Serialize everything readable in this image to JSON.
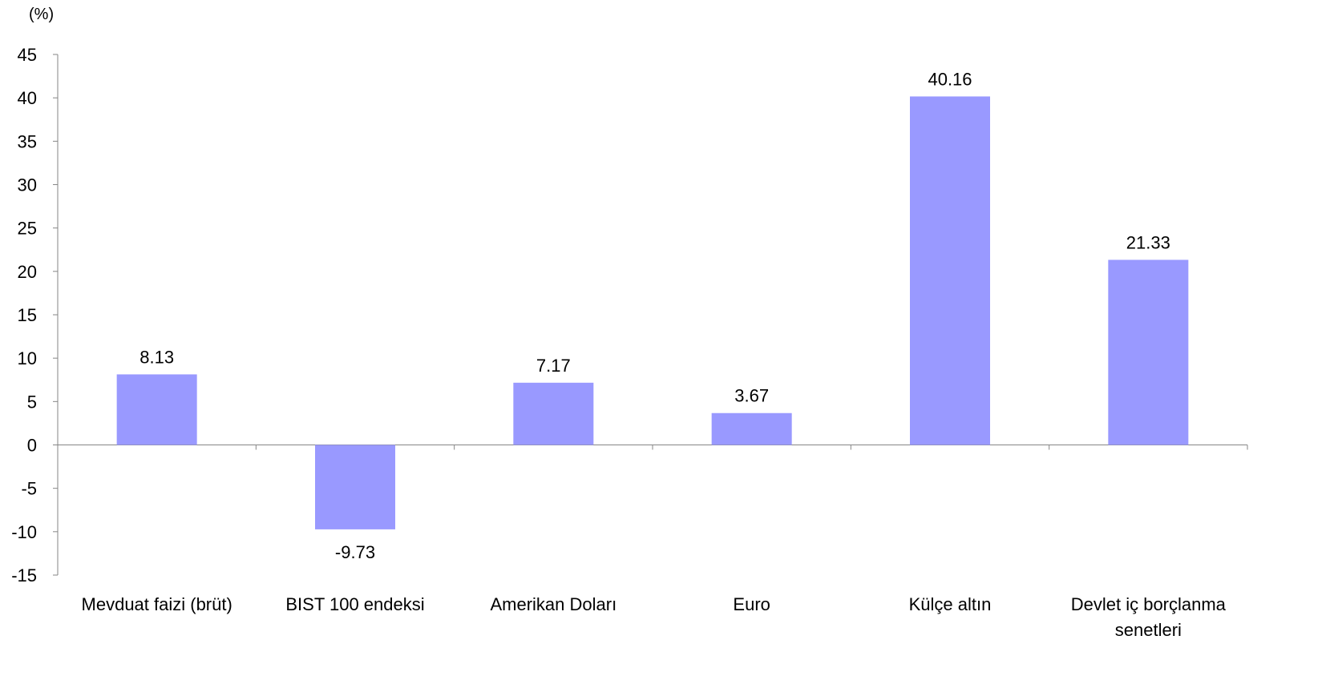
{
  "chart_data": {
    "type": "bar",
    "unit_label": "(%)",
    "categories": [
      [
        "Mevduat faizi (brüt)"
      ],
      [
        "BIST 100 endeksi"
      ],
      [
        "Amerikan Doları"
      ],
      [
        "Euro"
      ],
      [
        "Külçe altın"
      ],
      [
        "Devlet iç borçlanma",
        "senetleri"
      ]
    ],
    "values": [
      8.13,
      -9.73,
      7.17,
      3.67,
      40.16,
      21.33
    ],
    "value_labels": [
      "8.13",
      "-9.73",
      "7.17",
      "3.67",
      "40.16",
      "21.33"
    ],
    "y_ticks": [
      45,
      40,
      35,
      30,
      25,
      20,
      15,
      10,
      5,
      0,
      -5,
      -10,
      -15
    ],
    "ylim": [
      -15,
      45
    ],
    "grid": false,
    "legend": "none",
    "colors": {
      "bar": "#9999ff",
      "axis": "#868686",
      "text": "#000000"
    }
  }
}
